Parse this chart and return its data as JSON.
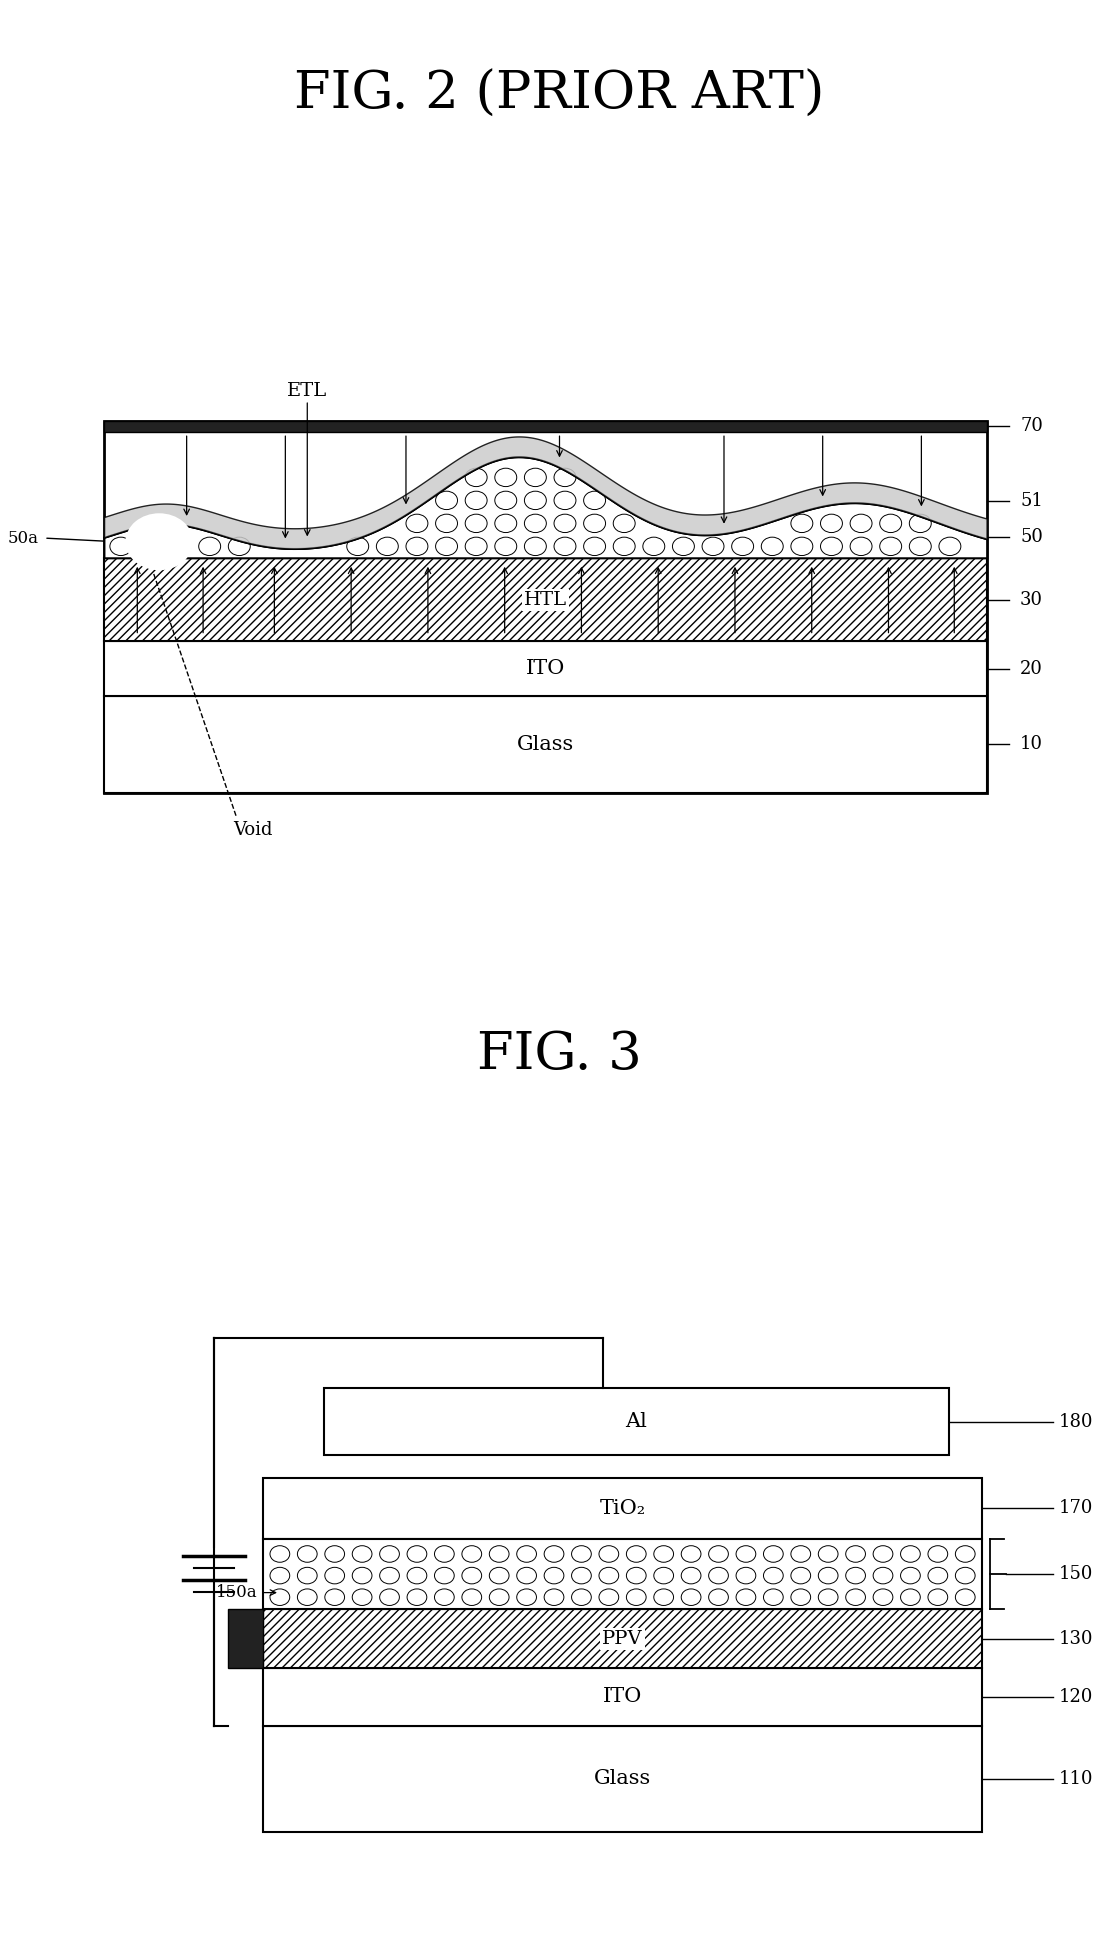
{
  "fig2_title": "FIG. 2 (PRIOR ART)",
  "fig3_title": "FIG. 3",
  "bg_color": "#ffffff",
  "fig2": {
    "glass_label": "Glass",
    "glass_ref": "10",
    "ito_label": "ITO",
    "ito_ref": "20",
    "htl_label": "HTL",
    "htl_ref": "30",
    "qdot_ref": "50",
    "qdot_void_label": "50a",
    "etl_ref": "51",
    "cathode_ref": "70",
    "etl_label": "ETL",
    "void_label": "Void"
  },
  "fig3": {
    "glass_label": "Glass",
    "glass_ref": "110",
    "ito_label": "ITO",
    "ito_ref": "120",
    "ppv_label": "PPV",
    "ppv_ref": "130",
    "qdot_ref": "150",
    "qdot_label": "150a",
    "tio2_label": "TiO₂",
    "tio2_ref": "170",
    "al_label": "Al",
    "al_ref": "180"
  }
}
